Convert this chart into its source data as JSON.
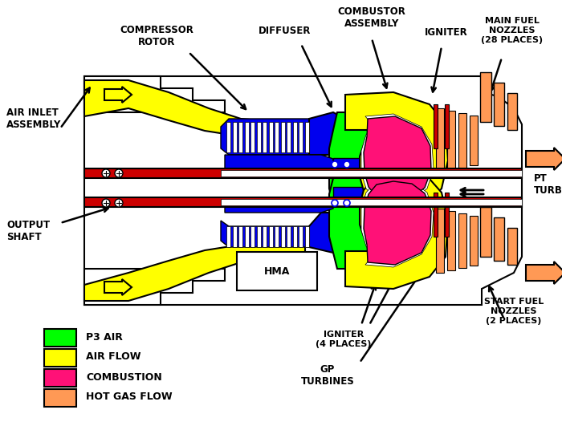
{
  "background_color": "#ffffff",
  "colors": {
    "yellow": "#FFFF00",
    "green": "#00FF00",
    "magenta": "#FF1177",
    "orange": "#FF9955",
    "blue": "#0000EE",
    "red": "#CC0000",
    "white": "#FFFFFF",
    "black": "#000000"
  },
  "legend": [
    {
      "color": "#00FF00",
      "label": "P3 AIR"
    },
    {
      "color": "#FFFF00",
      "label": "AIR FLOW"
    },
    {
      "color": "#FF1177",
      "label": "COMBUSTION"
    },
    {
      "color": "#FF9955",
      "label": "HOT GAS FLOW"
    }
  ],
  "labels": {
    "air_inlet": "AIR INLET\nASSEMBLY",
    "compressor_rotor": "COMPRESSOR\nROTOR",
    "diffuser": "DIFFUSER",
    "combustor": "COMBUSTOR\nASSEMBLY",
    "igniter_top": "IGNITER",
    "main_fuel": "MAIN FUEL\nNOZZLES\n(28 PLACES)",
    "pt_turbine": "PT\nTURBINE",
    "output_shaft": "OUTPUT\nSHAFT",
    "hma": "HMA",
    "igniter_bot": "IGNITER\n(4 PLACES)",
    "gp_turbines": "GP\nTURBINES",
    "start_fuel": "START FUEL\nNOZZLES\n(2 PLACES)"
  }
}
